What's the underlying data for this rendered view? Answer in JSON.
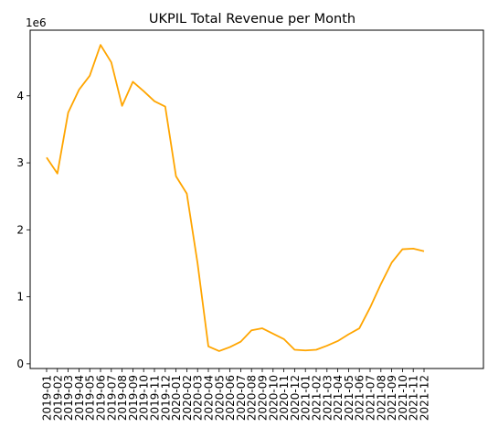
{
  "chart_data": {
    "type": "line",
    "title": "UKPIL Total Revenue per Month",
    "xlabel": "",
    "ylabel": "",
    "y_offset_text": "1e6",
    "grid": false,
    "line_color": "#FFA500",
    "ylim": [
      -0.07,
      4.98
    ],
    "y_ticks": [
      0,
      1,
      2,
      3,
      4
    ],
    "y_tick_labels": [
      "0",
      "1",
      "2",
      "3",
      "4"
    ],
    "y_scale": 1000000,
    "x": [
      "2019-01",
      "2019-02",
      "2019-03",
      "2019-04",
      "2019-05",
      "2019-06",
      "2019-07",
      "2019-08",
      "2019-09",
      "2019-10",
      "2019-11",
      "2019-12",
      "2020-01",
      "2020-02",
      "2020-03",
      "2020-04",
      "2020-05",
      "2020-06",
      "2020-07",
      "2020-08",
      "2020-09",
      "2020-10",
      "2020-11",
      "2020-12",
      "2021-01",
      "2021-02",
      "2021-03",
      "2021-04",
      "2021-05",
      "2021-06",
      "2021-07",
      "2021-08",
      "2021-09",
      "2021-10",
      "2021-11",
      "2021-12"
    ],
    "series": [
      {
        "values": [
          3080000,
          2840000,
          3750000,
          4090000,
          4300000,
          4760000,
          4500000,
          3850000,
          4210000,
          4070000,
          3920000,
          3840000,
          2800000,
          2540000,
          1500000,
          260000,
          190000,
          250000,
          330000,
          500000,
          530000,
          450000,
          370000,
          210000,
          200000,
          210000,
          270000,
          340000,
          440000,
          530000,
          840000,
          1190000,
          1510000,
          1710000,
          1720000,
          1680000
        ]
      }
    ]
  }
}
